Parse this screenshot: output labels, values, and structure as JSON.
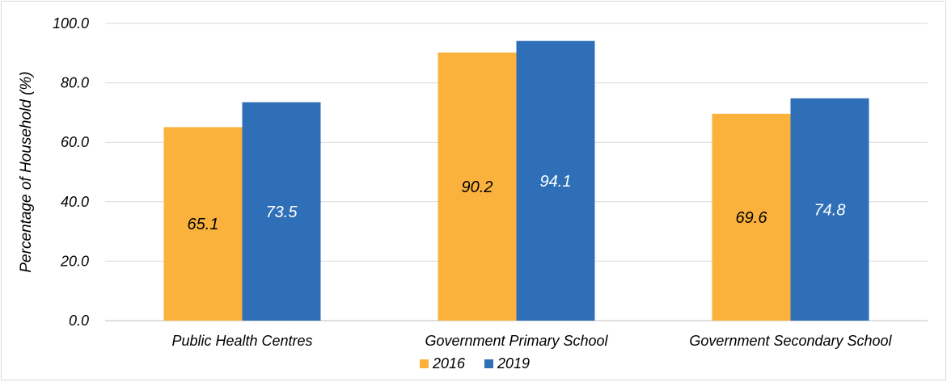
{
  "chart_data": {
    "type": "bar",
    "title": "",
    "xlabel": "",
    "ylabel": "Percentage of Household (%)",
    "ylim": [
      0,
      100
    ],
    "yticks": [
      "0.0",
      "20.0",
      "40.0",
      "60.0",
      "80.0",
      "100.0"
    ],
    "categories": [
      "Public Health Centres",
      "Government Primary School",
      "Government Secondary School"
    ],
    "series": [
      {
        "name": "2016",
        "values": [
          65.1,
          90.2,
          69.6
        ],
        "labels": [
          "65.1",
          "90.2",
          "69.6"
        ],
        "color": "#FAB23C",
        "label_color": "#000000"
      },
      {
        "name": "2019",
        "values": [
          73.5,
          94.1,
          74.8
        ],
        "labels": [
          "73.5",
          "94.1",
          "74.8"
        ],
        "color": "#2E6FB7",
        "label_color": "#FFFFFF"
      }
    ],
    "grid": true,
    "legend": "bottom-center"
  }
}
